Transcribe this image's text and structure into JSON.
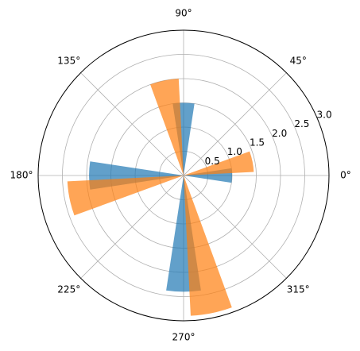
{
  "chart_data": {
    "type": "polar_bar",
    "series": [
      {
        "color": "#1f77b4",
        "x": [
          0,
          90,
          180,
          270
        ],
        "values": [
          1.0,
          1.5,
          1.95,
          2.4
        ]
      },
      {
        "color": "#ff7f0e",
        "x": [
          11.5,
          101.5,
          191.5,
          281.5
        ],
        "values": [
          1.45,
          2.0,
          2.4,
          2.9
        ]
      }
    ],
    "alpha": 0.7,
    "ylim": [
      0,
      3
    ],
    "yticks": [
      0.5,
      {
        "value": 1,
        "label": "1.0"
      },
      1.5,
      {
        "value": 2,
        "label": "2.0"
      },
      2.5,
      {
        "value": 3,
        "label": "3.0"
      }
    ],
    "xticks": [
      {
        "value": 0,
        "label": "0°"
      },
      {
        "value": 45,
        "label": "45°"
      },
      {
        "value": 90,
        "label": "90°"
      },
      {
        "value": 135,
        "label": "135°"
      },
      {
        "value": 180,
        "label": "180°"
      },
      {
        "value": 225,
        "label": "225°"
      },
      {
        "value": 270,
        "label": "270°"
      },
      {
        "value": 315,
        "label": "315°"
      }
    ],
    "grid": true
  }
}
